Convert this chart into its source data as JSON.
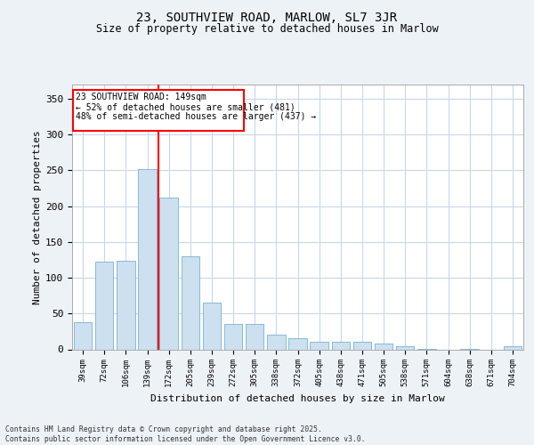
{
  "title1": "23, SOUTHVIEW ROAD, MARLOW, SL7 3JR",
  "title2": "Size of property relative to detached houses in Marlow",
  "xlabel": "Distribution of detached houses by size in Marlow",
  "ylabel": "Number of detached properties",
  "categories": [
    "39sqm",
    "72sqm",
    "106sqm",
    "139sqm",
    "172sqm",
    "205sqm",
    "239sqm",
    "272sqm",
    "305sqm",
    "338sqm",
    "372sqm",
    "405sqm",
    "438sqm",
    "471sqm",
    "505sqm",
    "538sqm",
    "571sqm",
    "604sqm",
    "638sqm",
    "671sqm",
    "704sqm"
  ],
  "values": [
    38,
    122,
    124,
    252,
    212,
    130,
    65,
    35,
    35,
    21,
    15,
    10,
    10,
    10,
    8,
    4,
    1,
    0,
    1,
    0,
    4
  ],
  "bar_color": "#cce0f0",
  "bar_edge_color": "#7ab0d4",
  "vline_x": 3.5,
  "vline_color": "red",
  "annotation_title": "23 SOUTHVIEW ROAD: 149sqm",
  "annotation_line1": "← 52% of detached houses are smaller (481)",
  "annotation_line2": "48% of semi-detached houses are larger (437) →",
  "annotation_box_color": "red",
  "ylim": [
    0,
    370
  ],
  "yticks": [
    0,
    50,
    100,
    150,
    200,
    250,
    300,
    350
  ],
  "footer": "Contains HM Land Registry data © Crown copyright and database right 2025.\nContains public sector information licensed under the Open Government Licence v3.0.",
  "bg_color": "#edf2f7",
  "plot_bg_color": "#ffffff",
  "grid_color": "#c8d8e8"
}
